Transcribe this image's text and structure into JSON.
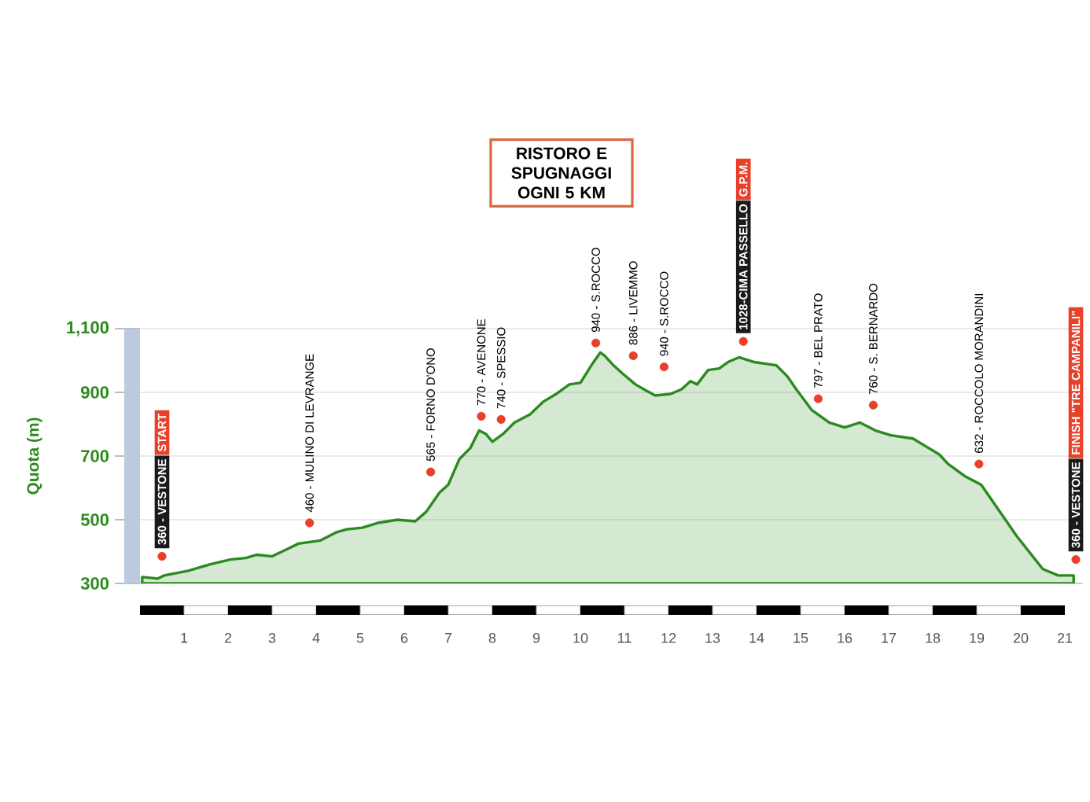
{
  "chart_data": {
    "type": "area",
    "ylabel": "Quota (m)",
    "xlim": [
      0,
      21.4
    ],
    "ylim": [
      300,
      1100
    ],
    "xticks": [
      1,
      2,
      3,
      4,
      5,
      6,
      7,
      8,
      9,
      10,
      11,
      12,
      13,
      14,
      15,
      16,
      17,
      18,
      19,
      20,
      21
    ],
    "yticks": [
      300,
      500,
      700,
      900,
      {
        "value": 1100,
        "label": "1,100"
      }
    ],
    "grid": "y",
    "series": [
      {
        "color": "#2b8a20",
        "x": [
          0.05,
          0.4,
          0.55,
          1.1,
          1.6,
          2.05,
          2.4,
          2.65,
          3,
          3.3,
          3.6,
          3.85,
          4.1,
          4.45,
          4.7,
          5.05,
          5.4,
          5.85,
          6.25,
          6.5,
          6.8,
          7,
          7.25,
          7.5,
          7.7,
          7.85,
          8,
          8.25,
          8.5,
          8.85,
          9.15,
          9.45,
          9.75,
          10,
          10.25,
          10.45,
          10.55,
          10.75,
          10.95,
          11.25,
          11.5,
          11.7,
          12.05,
          12.3,
          12.5,
          12.65,
          12.9,
          13.15,
          13.35,
          13.6,
          13.95,
          14.45,
          14.7,
          14.9,
          15.25,
          15.65,
          16,
          16.35,
          16.7,
          17.05,
          17.55,
          17.85,
          18.15,
          18.35,
          18.75,
          19.1,
          19.45,
          19.9,
          20.3,
          20.5,
          20.85,
          21.2
        ],
        "values": [
          320,
          315,
          325,
          340,
          360,
          375,
          380,
          390,
          385,
          405,
          425,
          430,
          435,
          460,
          470,
          475,
          490,
          500,
          495,
          525,
          585,
          610,
          690,
          725,
          780,
          770,
          745,
          770,
          805,
          830,
          870,
          895,
          925,
          930,
          985,
          1025,
          1015,
          985,
          960,
          925,
          905,
          890,
          895,
          910,
          935,
          925,
          970,
          975,
          995,
          1010,
          995,
          985,
          950,
          910,
          845,
          805,
          790,
          805,
          780,
          765,
          755,
          730,
          705,
          675,
          635,
          610,
          540,
          450,
          380,
          345,
          325,
          325
        ]
      },
      {
        "type": "scatter",
        "color": "#e8402a",
        "marker": "circle",
        "x": [
          0.5,
          3.85,
          6.6,
          7.75,
          8.2,
          10.35,
          11.2,
          11.9,
          13.7,
          15.4,
          16.65,
          19.05,
          21.25
        ],
        "values": [
          385,
          490,
          650,
          825,
          815,
          1055,
          1015,
          980,
          1060,
          880,
          860,
          675,
          375
        ]
      }
    ],
    "annotations": [
      {
        "text": "360 - VESTONE",
        "x": 0.5,
        "y": 385
      },
      "START",
      {
        "text": "460 - MULINO DI LEVRANGE",
        "x": 3.85,
        "y": 490
      },
      {
        "text": "565 - FORNO D'ONO",
        "x": 6.6,
        "y": 650
      },
      {
        "text": "770 - AVENONE",
        "x": 7.75,
        "y": 825
      },
      {
        "text": "740 - SPESSIO",
        "x": 8.2,
        "y": 815
      },
      {
        "text": "940 - S.ROCCO",
        "x": 10.35,
        "y": 1055
      },
      {
        "text": "886 - LIVEMMO",
        "x": 11.2,
        "y": 1015
      },
      {
        "text": "940 - S.ROCCO",
        "x": 11.9,
        "y": 980
      },
      {
        "text": "1028-CIMA PASSELLO",
        "x": 13.7,
        "y": 1060
      },
      "G.P.M.",
      {
        "text": "797 - BEL PRATO",
        "x": 15.4,
        "y": 880
      },
      {
        "text": "760 - S. BERNARDO",
        "x": 16.65,
        "y": 860
      },
      {
        "text": "632 - ROCCOLO MORANDINI",
        "x": 19.05,
        "y": 675
      },
      {
        "text": "360 - VESTONE",
        "x": 21.25,
        "y": 375
      },
      "FINISH \"TRE CAMPANILI\"",
      {
        "text": "RISTORO E SPUGNAGGI OGNI 5 KM"
      }
    ]
  }
}
